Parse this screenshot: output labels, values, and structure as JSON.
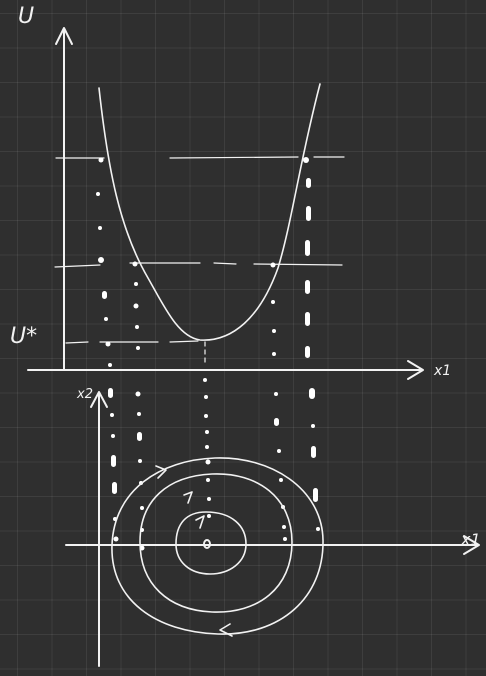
{
  "labels": {
    "upper_vertical_axis": "U",
    "minimum_value": "U*",
    "upper_horizontal_axis": "x1",
    "lower_vertical_axis": "x2",
    "lower_horizontal_axis": "x1"
  },
  "colors": {
    "background": "#2f2f2f",
    "grid": "#474747",
    "ink": "#f2f2f2"
  }
}
